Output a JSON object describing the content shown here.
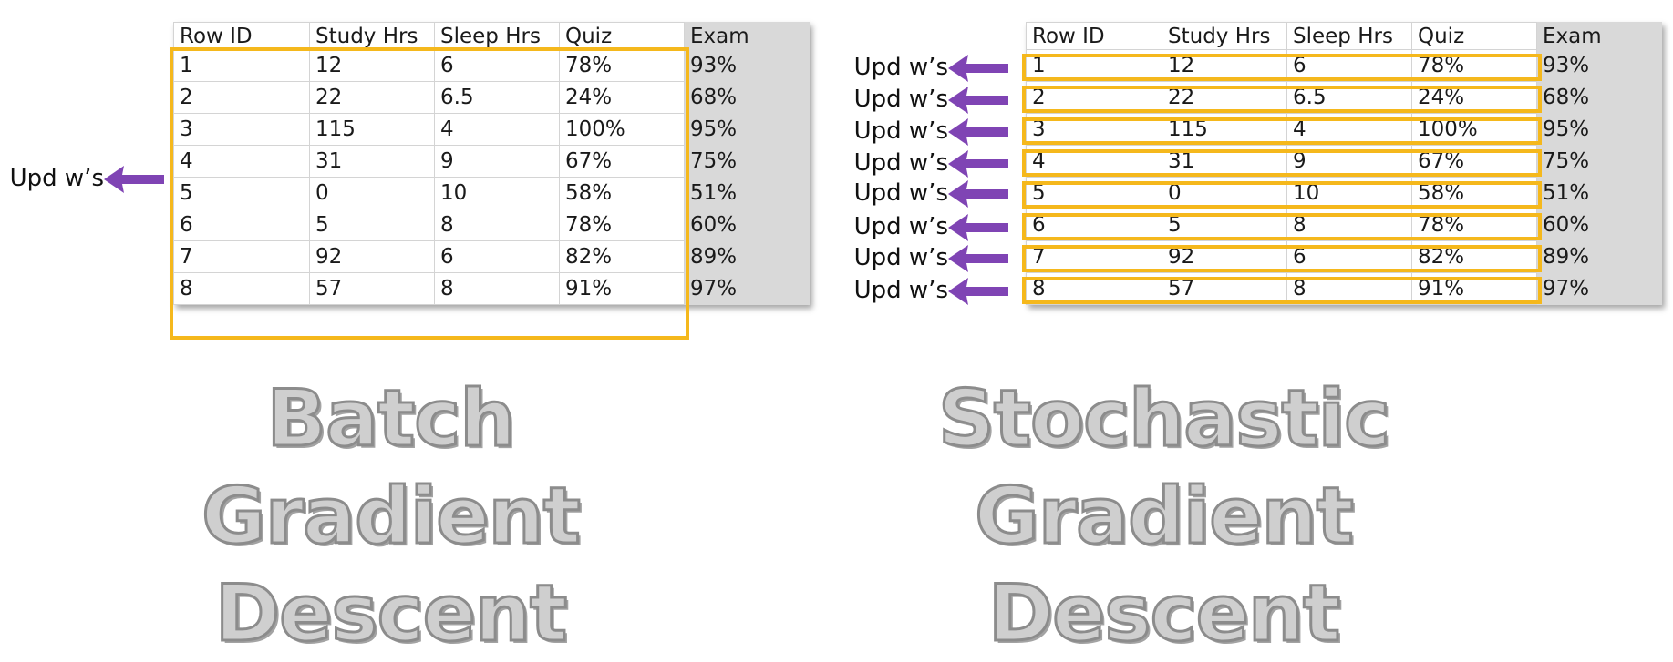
{
  "table": {
    "headers": [
      "Row ID",
      "Study Hrs",
      "Sleep Hrs",
      "Quiz",
      "Exam"
    ],
    "rows": [
      [
        "1",
        "12",
        "6",
        "78%",
        "93%"
      ],
      [
        "2",
        "22",
        "6.5",
        "24%",
        "68%"
      ],
      [
        "3",
        "115",
        "4",
        "100%",
        "95%"
      ],
      [
        "4",
        "31",
        "9",
        "67%",
        "75%"
      ],
      [
        "5",
        "0",
        "10",
        "58%",
        "51%"
      ],
      [
        "6",
        "5",
        "8",
        "78%",
        "60%"
      ],
      [
        "7",
        "92",
        "6",
        "82%",
        "89%"
      ],
      [
        "8",
        "57",
        "8",
        "91%",
        "97%"
      ]
    ]
  },
  "annotation": {
    "label": "Upd w’s"
  },
  "batch": {
    "title_lines": [
      "Batch",
      "Gradient",
      "Descent"
    ]
  },
  "stochastic": {
    "title_lines": [
      "Stochastic",
      "Gradient",
      "Descent"
    ]
  },
  "colors": {
    "highlight": "#f5b81c",
    "arrow": "#7f44b4",
    "title_fill": "#cfcfcf",
    "title_outline": "#8c8c8c",
    "exam_column": "#d9d9d9"
  }
}
